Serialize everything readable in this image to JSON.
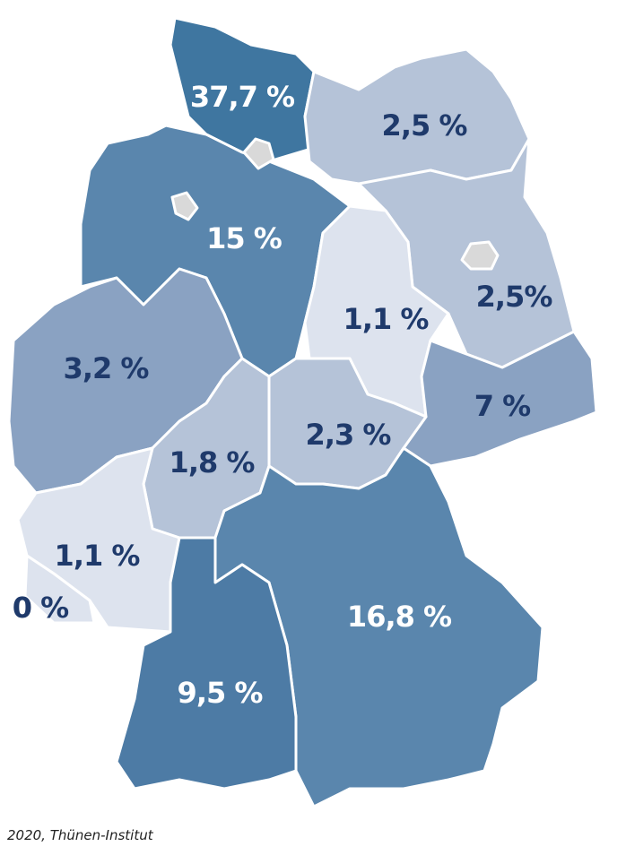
{
  "regions": [
    {
      "label": "37,7 %"
    },
    {
      "label": "2,5 %"
    },
    {
      "label": "15 %"
    },
    {
      "label": "2,5%"
    },
    {
      "label": "1,1 %"
    },
    {
      "label": "3,2 %"
    },
    {
      "label": "7 %"
    },
    {
      "label": "2,3 %"
    },
    {
      "label": "1,8 %"
    },
    {
      "label": "1,1 %"
    },
    {
      "label": "0 %"
    },
    {
      "label": "16,8 %"
    },
    {
      "label": "9,5 %"
    }
  ],
  "source": "2020, Thünen-Institut"
}
